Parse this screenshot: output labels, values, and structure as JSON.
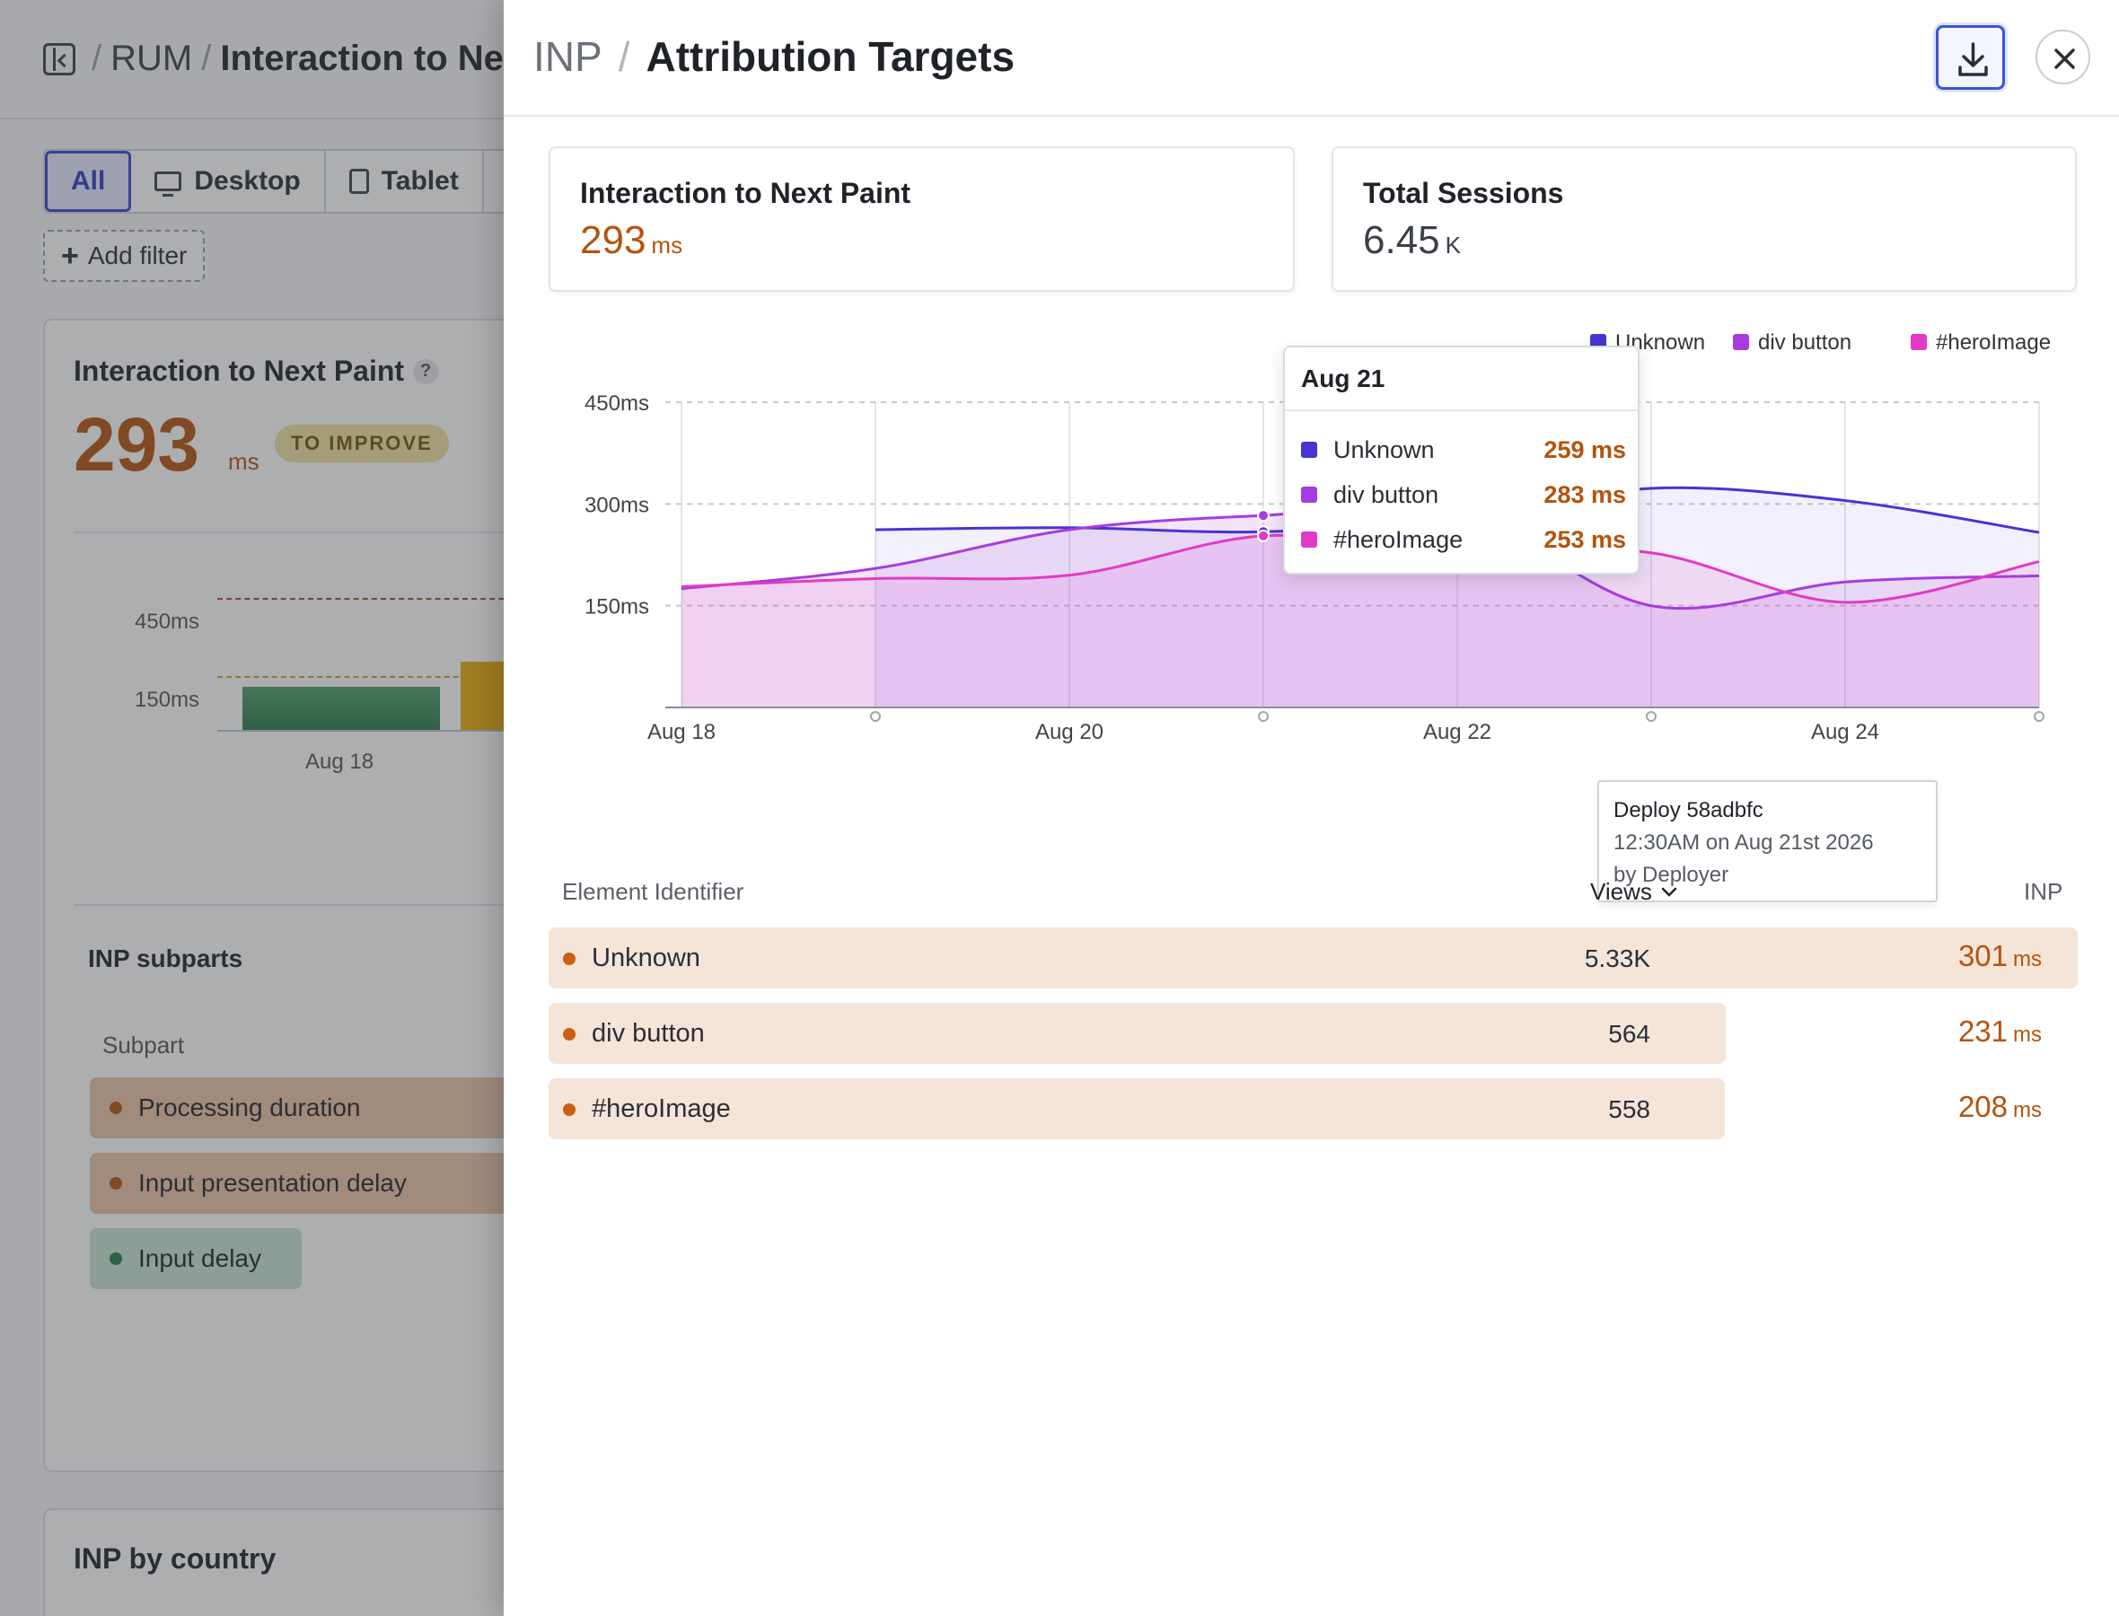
{
  "background": {
    "breadcrumb": {
      "root": "RUM",
      "current": "Interaction to Nex"
    },
    "device_tabs": [
      "All",
      "Desktop",
      "Tablet"
    ],
    "add_filter_label": "Add filter",
    "card": {
      "title": "Interaction to Next Paint",
      "help": "?",
      "value": "293",
      "unit": "ms",
      "badge": "TO IMPROVE",
      "mini_ticks": [
        "450ms",
        "150ms"
      ],
      "mini_xlabel": "Aug 18",
      "subparts_title": "INP subparts",
      "subpart_header": "Subpart",
      "subparts": [
        "Processing duration",
        "Input presentation delay",
        "Input delay"
      ]
    },
    "card2_title": "INP by country"
  },
  "drawer": {
    "breadcrumb_root": "INP",
    "title": "Attribution Targets",
    "stats": [
      {
        "label": "Interaction to Next Paint",
        "value": "293",
        "unit": "ms",
        "color": "#b4530d"
      },
      {
        "label": "Total Sessions",
        "value": "6.45",
        "unit": "K",
        "color": "#3b4048"
      }
    ],
    "tooltip": {
      "date": "Aug 21",
      "rows": [
        {
          "name": "Unknown",
          "value": "259 ms",
          "color": "#4634d4"
        },
        {
          "name": "div button",
          "value": "283 ms",
          "color": "#a73be0"
        },
        {
          "name": "#heroImage",
          "value": "253 ms",
          "color": "#e23ac4"
        }
      ]
    },
    "deploy": {
      "title": "Deploy 58adbfc",
      "time": "12:30AM on Aug 21st 2026",
      "by": "by Deployer"
    },
    "table": {
      "headers": {
        "element": "Element Identifier",
        "views": "Views",
        "inp": "INP"
      },
      "rows": [
        {
          "name": "Unknown",
          "views": "5.33K",
          "inp": "301",
          "unit": "ms",
          "views_value": 5330
        },
        {
          "name": "div button",
          "views": "564",
          "inp": "231",
          "unit": "ms",
          "views_value": 564
        },
        {
          "name": "#heroImage",
          "views": "558",
          "inp": "208",
          "unit": "ms",
          "views_value": 558
        }
      ]
    }
  },
  "chart_data": {
    "type": "area",
    "x": [
      "Aug 18",
      "Aug 19",
      "Aug 20",
      "Aug 21",
      "Aug 22",
      "Aug 23",
      "Aug 24",
      "Aug 25"
    ],
    "x_tick_labels": [
      "Aug 18",
      "Aug 20",
      "Aug 22",
      "Aug 24"
    ],
    "y_tick_labels": [
      "450ms",
      "300ms",
      "150ms"
    ],
    "ylim": [
      0,
      450
    ],
    "grid": true,
    "legend_position": "top-right",
    "series": [
      {
        "name": "Unknown",
        "color": "#4634d4",
        "values": [
          null,
          262,
          265,
          259,
          280,
          323,
          305,
          258
        ]
      },
      {
        "name": "div button",
        "color": "#a73be0",
        "values": [
          175,
          205,
          262,
          283,
          290,
          150,
          185,
          194
        ]
      },
      {
        "name": "#heroImage",
        "color": "#e23ac4",
        "values": [
          178,
          190,
          195,
          253,
          232,
          228,
          155,
          215
        ]
      }
    ],
    "annotations": [
      {
        "x": "Aug 21",
        "label": "Deploy 58adbfc"
      }
    ]
  }
}
